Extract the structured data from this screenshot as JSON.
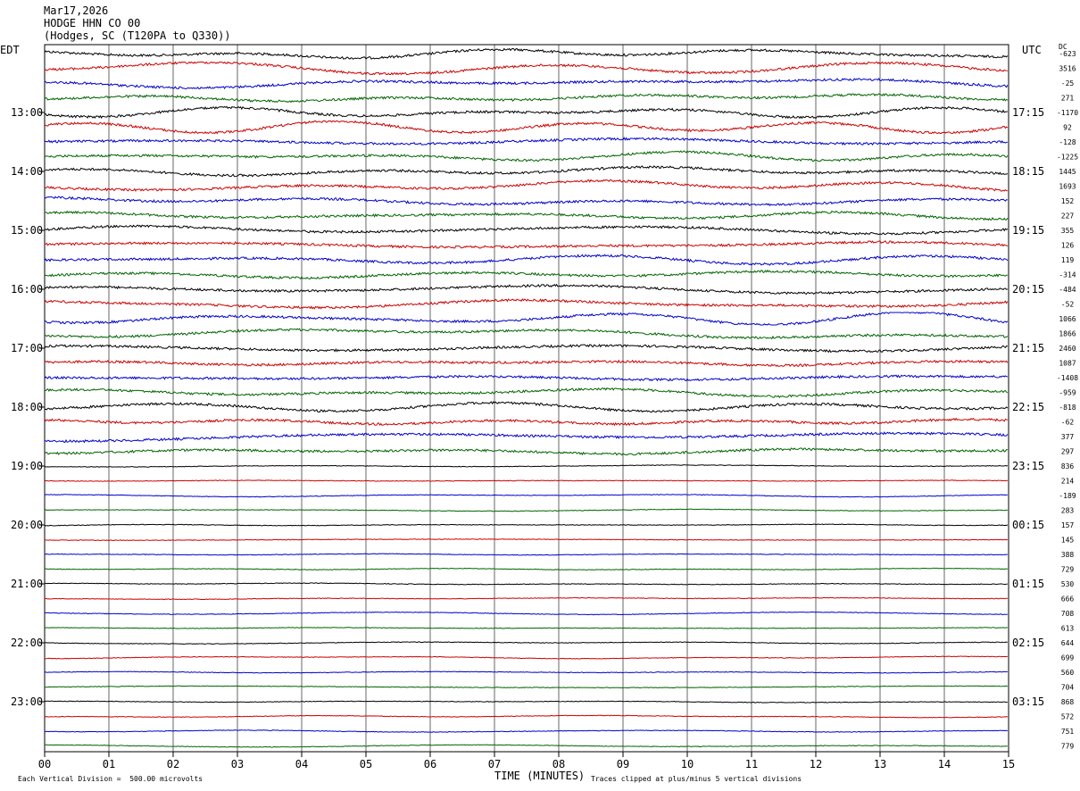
{
  "header": {
    "date": "Mar17,2026",
    "station": "HODGE HHN CO 00",
    "location": "(Hodges, SC (T120PA to Q330))"
  },
  "footer": {
    "scale_note": "Each Vertical Division =  500.00 microvolts",
    "clip_note": "Traces clipped at plus/minus 5 vertical divisions"
  },
  "colors": {
    "cycle": [
      "#000000",
      "#cc0000",
      "#0000cc",
      "#006400"
    ],
    "grid": "#000000"
  },
  "chart_data": {
    "type": "line",
    "title": "",
    "xlabel": "TIME (MINUTES)",
    "x_ticks": [
      "00",
      "01",
      "02",
      "03",
      "04",
      "05",
      "06",
      "07",
      "08",
      "09",
      "10",
      "11",
      "12",
      "13",
      "14",
      "15"
    ],
    "xlim": [
      0,
      15
    ],
    "left_label": "EDT",
    "right_label": "UTC",
    "dc_label": "DC",
    "left_hours": [
      "13:00",
      "14:00",
      "15:00",
      "16:00",
      "17:00",
      "18:00",
      "19:00",
      "20:00",
      "21:00",
      "22:00",
      "23:00"
    ],
    "right_hours": [
      "17:15",
      "18:15",
      "19:15",
      "20:15",
      "21:15",
      "22:15",
      "23:15",
      "00:15",
      "01:15",
      "02:15",
      "03:15"
    ],
    "dc_offsets": [
      "-623",
      "3516",
      "-25",
      "271",
      "-1170",
      "92",
      "-128",
      "-1225",
      "1445",
      "1693",
      "152",
      "227",
      "355",
      "126",
      "119",
      "-314",
      "-484",
      "-52",
      "1066",
      "1866",
      "2460",
      "1087",
      "-1408",
      "-959",
      "-818",
      "-62",
      "377",
      "297",
      "836",
      "214",
      "-189",
      "283",
      "157",
      "145",
      "388",
      "729",
      "530",
      "666",
      "708",
      "613",
      "644",
      "699",
      "560",
      "704",
      "868",
      "572",
      "751",
      "779"
    ]
  }
}
